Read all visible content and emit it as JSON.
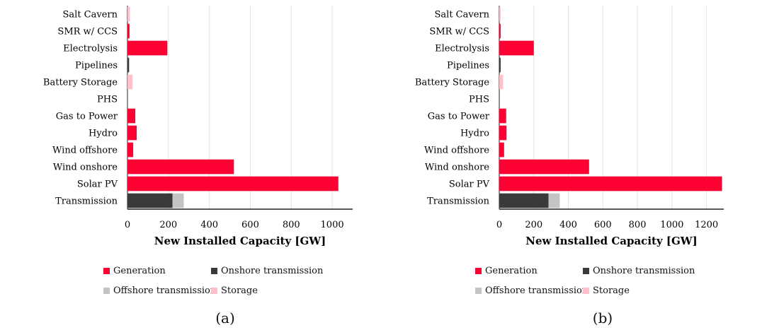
{
  "colors": {
    "generation": "#FF0033",
    "onshore": "#3A3A3A",
    "offshore": "#C4C4C4",
    "storage": "#FFC0CB"
  },
  "legend": {
    "generation": "Generation",
    "onshore": "Onshore transmission",
    "offshore": "Offshore transmission",
    "storage": "Storage"
  },
  "chart_data": [
    {
      "type": "bar",
      "orientation": "horizontal",
      "stacked": true,
      "caption": "(a)",
      "xlabel": "New Installed Capacity [GW]",
      "xlim": [
        0,
        1100
      ],
      "xticks": [
        0,
        200,
        400,
        600,
        800,
        1000
      ],
      "grid": true,
      "legend_position": "bottom",
      "categories": [
        "Salt Cavern",
        "SMR w/ CCS",
        "Electrolysis",
        "Pipelines",
        "Battery Storage",
        "PHS",
        "Gas to Power",
        "Hydro",
        "Wind offshore",
        "Wind onshore",
        "Solar PV",
        "Transmission"
      ],
      "series": [
        {
          "name": "Generation",
          "values": [
            0,
            10,
            195,
            0,
            0,
            0,
            38,
            45,
            28,
            520,
            1030,
            0
          ]
        },
        {
          "name": "Onshore transmission",
          "values": [
            0,
            0,
            0,
            8,
            0,
            0,
            0,
            0,
            0,
            0,
            0,
            220
          ]
        },
        {
          "name": "Offshore transmission",
          "values": [
            0,
            0,
            0,
            0,
            0,
            0,
            0,
            0,
            0,
            0,
            0,
            55
          ]
        },
        {
          "name": "Storage",
          "values": [
            12,
            0,
            0,
            0,
            25,
            0,
            0,
            0,
            0,
            0,
            0,
            0
          ]
        }
      ]
    },
    {
      "type": "bar",
      "orientation": "horizontal",
      "stacked": true,
      "caption": "(b)",
      "xlabel": "New Installed Capacity [GW]",
      "xlim": [
        0,
        1300
      ],
      "xticks": [
        0,
        200,
        400,
        600,
        800,
        1000,
        1200
      ],
      "grid": true,
      "legend_position": "bottom",
      "categories": [
        "Salt Cavern",
        "SMR w/ CCS",
        "Electrolysis",
        "Pipelines",
        "Battery Storage",
        "PHS",
        "Gas to Power",
        "Hydro",
        "Wind offshore",
        "Wind onshore",
        "Solar PV",
        "Transmission"
      ],
      "series": [
        {
          "name": "Generation",
          "values": [
            0,
            8,
            200,
            0,
            0,
            0,
            40,
            42,
            28,
            520,
            1290,
            0
          ]
        },
        {
          "name": "Onshore transmission",
          "values": [
            0,
            0,
            0,
            8,
            0,
            0,
            0,
            0,
            0,
            0,
            0,
            285
          ]
        },
        {
          "name": "Offshore transmission",
          "values": [
            0,
            0,
            0,
            0,
            0,
            0,
            0,
            0,
            0,
            0,
            0,
            65
          ]
        },
        {
          "name": "Storage",
          "values": [
            8,
            0,
            0,
            0,
            22,
            0,
            0,
            0,
            0,
            0,
            0,
            0
          ]
        }
      ]
    }
  ]
}
